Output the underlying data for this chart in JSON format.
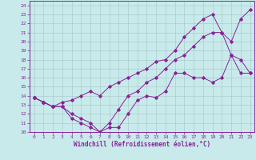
{
  "bg_color": "#c8eaea",
  "grid_color": "#aacccc",
  "line_color": "#882299",
  "xlim": [
    -0.5,
    23.5
  ],
  "ylim": [
    10,
    24.5
  ],
  "xticks": [
    0,
    1,
    2,
    3,
    4,
    5,
    6,
    7,
    8,
    9,
    10,
    11,
    12,
    13,
    14,
    15,
    16,
    17,
    18,
    19,
    20,
    21,
    22,
    23
  ],
  "yticks": [
    10,
    11,
    12,
    13,
    14,
    15,
    16,
    17,
    18,
    19,
    20,
    21,
    22,
    23,
    24
  ],
  "xlabel": "Windchill (Refroidissement éolien,°C)",
  "line1_x": [
    0,
    1,
    2,
    3,
    4,
    5,
    6,
    7,
    8,
    9,
    10,
    11,
    12,
    13,
    14,
    15,
    16,
    17,
    18,
    19,
    20,
    21,
    22,
    23
  ],
  "line1_y": [
    13.8,
    13.3,
    12.8,
    12.8,
    11.5,
    11.0,
    10.5,
    10.0,
    10.5,
    10.5,
    12.0,
    13.5,
    14.0,
    13.8,
    14.5,
    16.5,
    16.5,
    16.0,
    16.0,
    15.5,
    16.0,
    18.5,
    16.5,
    16.5
  ],
  "line2_x": [
    0,
    1,
    2,
    3,
    4,
    5,
    6,
    7,
    8,
    9,
    10,
    11,
    12,
    13,
    14,
    15,
    16,
    17,
    18,
    19,
    20,
    21,
    22,
    23
  ],
  "line2_y": [
    13.8,
    13.3,
    12.8,
    12.8,
    12.0,
    11.5,
    11.0,
    10.0,
    11.0,
    12.5,
    14.0,
    14.5,
    15.5,
    16.0,
    17.0,
    18.0,
    18.5,
    19.5,
    20.5,
    21.0,
    21.0,
    20.0,
    22.5,
    23.5
  ],
  "line3_x": [
    0,
    1,
    2,
    3,
    4,
    5,
    6,
    7,
    8,
    9,
    10,
    11,
    12,
    13,
    14,
    15,
    16,
    17,
    18,
    19,
    20,
    21,
    22,
    23
  ],
  "line3_y": [
    13.8,
    13.3,
    12.8,
    13.3,
    13.5,
    14.0,
    14.5,
    14.0,
    15.0,
    15.5,
    16.0,
    16.5,
    17.0,
    17.8,
    18.0,
    19.0,
    20.5,
    21.5,
    22.5,
    23.0,
    21.0,
    18.5,
    18.0,
    16.5
  ]
}
